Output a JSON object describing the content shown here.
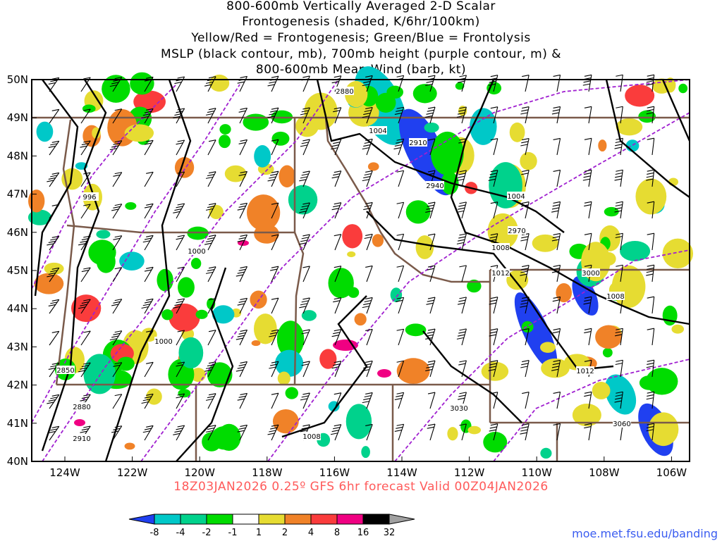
{
  "title": {
    "line1": "800-600mb Vertically Averaged 2-D Scalar",
    "line2": "Frontogenesis (shaded, K/6hr/100km)",
    "line3": "Yellow/Red = Frontogenesis;  Green/Blue = Frontolysis",
    "line4": "MSLP (black contour, mb), 700mb height (purple contour, m) &",
    "line5": "800-600mb Mean Wind (barb, kt)"
  },
  "lat_labels": [
    "50N",
    "49N",
    "48N",
    "47N",
    "46N",
    "45N",
    "44N",
    "43N",
    "42N",
    "41N",
    "40N"
  ],
  "lon_labels": [
    "124W",
    "122W",
    "120W",
    "118W",
    "116W",
    "114W",
    "112W",
    "110W",
    "108W",
    "106W"
  ],
  "valid_text": "18Z03JAN2026 0.25º GFS 6hr forecast Valid 00Z04JAN2026",
  "credit": "moe.met.fsu.edu/banding",
  "colorbar": {
    "ticks": [
      "-8",
      "-4",
      "-2",
      "-1",
      "1",
      "2",
      "4",
      "8",
      "16",
      "32"
    ],
    "colors": [
      "#2040f0",
      "#00c8c8",
      "#00d28c",
      "#00dc00",
      "#ffffff",
      "#e6dc32",
      "#f08228",
      "#fa3c3c",
      "#f00082",
      "#000000",
      "#a0a0a0"
    ]
  },
  "contour_labels": [
    "2880",
    "1004",
    "2910",
    "2940",
    "1004",
    "2970",
    "1008",
    "1012",
    "3000",
    "1008",
    "1000",
    "996",
    "1000",
    "2850",
    "2880",
    "2910",
    "1008",
    "3030",
    "1012",
    "3060"
  ]
}
